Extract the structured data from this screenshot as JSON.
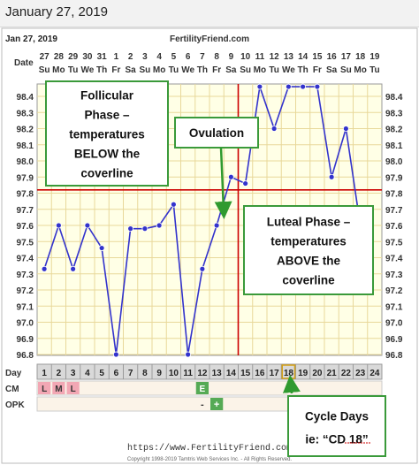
{
  "header": {
    "date_label": "January 27, 2019"
  },
  "chart_data": {
    "type": "line",
    "chart_date": "Jan 27, 2019",
    "site_title": "FertilityFriend.com",
    "footer_url": "https://www.FertilityFriend.com",
    "copyright": "Copyright 1998-2019 Tamtris Web Services Inc. - All Rights Reserved.",
    "date_row_label": "Date",
    "day_row_label": "Day",
    "dates": [
      "27",
      "28",
      "29",
      "30",
      "31",
      "1",
      "2",
      "3",
      "4",
      "5",
      "6",
      "7",
      "8",
      "9",
      "10",
      "11",
      "12",
      "13",
      "14",
      "15",
      "16",
      "17",
      "18",
      "19"
    ],
    "weekdays": [
      "Su",
      "Mo",
      "Tu",
      "We",
      "Th",
      "Fr",
      "Sa",
      "Su",
      "Mo",
      "Tu",
      "We",
      "Th",
      "Fr",
      "Sa",
      "Su",
      "Mo",
      "Tu",
      "We",
      "Th",
      "Fr",
      "Sa",
      "Su",
      "Mo",
      "Tu"
    ],
    "cycle_days": [
      "1",
      "2",
      "3",
      "4",
      "5",
      "6",
      "7",
      "8",
      "9",
      "10",
      "11",
      "12",
      "13",
      "14",
      "15",
      "16",
      "17",
      "18",
      "19",
      "20",
      "21",
      "22",
      "23",
      "24"
    ],
    "temperatures": [
      97.33,
      97.6,
      97.33,
      97.6,
      97.46,
      96.8,
      97.58,
      97.58,
      97.6,
      97.73,
      96.8,
      97.33,
      97.6,
      97.9,
      97.86,
      98.46,
      98.2,
      98.46,
      98.46,
      98.46,
      97.9,
      98.2,
      97.6
    ],
    "ylim": [
      96.8,
      98.4
    ],
    "y_ticks": [
      "96.8",
      "96.9",
      "97.0",
      "97.1",
      "97.2",
      "97.3",
      "97.4",
      "97.5",
      "97.6",
      "97.7",
      "97.8",
      "97.9",
      "98.0",
      "98.1",
      "98.2",
      "98.3",
      "98.4"
    ],
    "coverline": 97.82,
    "ovulation_day": 14,
    "cm_label": "CM",
    "cm": {
      "1": "L",
      "2": "M",
      "3": "L",
      "12": "E"
    },
    "opk_label": "OPK",
    "opk": {
      "12": "-",
      "13": "+"
    },
    "highlight_day": 18,
    "annotations": [
      {
        "id": "follicular",
        "text": [
          "Follicular",
          "Phase –",
          "temperatures",
          "BELOW the",
          "coverline"
        ]
      },
      {
        "id": "ovulation",
        "text": [
          "Ovulation"
        ]
      },
      {
        "id": "luteal",
        "text": [
          "Luteal Phase –",
          "temperatures",
          "ABOVE the",
          "coverline"
        ]
      },
      {
        "id": "cycle",
        "text": [
          "Cycle Days",
          "ie: “CD 18”"
        ]
      }
    ],
    "colors": {
      "line": "#3333cc",
      "coverline": "#cc0000",
      "ovulation_line": "#cc0000",
      "grid": "#e8d89a",
      "background": "#ffffe6",
      "cm_pink": "#f2a7b4",
      "cm_green": "#55aa55",
      "annotation_border": "#3a9a3a",
      "arrow": "#2f9a2f"
    }
  }
}
